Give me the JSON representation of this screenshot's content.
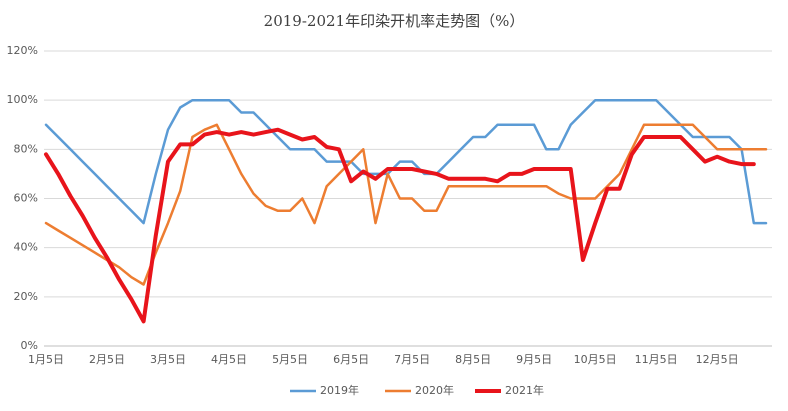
{
  "chart_data": {
    "type": "line",
    "title": "2019-2021年印染开机率走势图（%）",
    "categories": [
      "1月5日",
      null,
      null,
      null,
      null,
      "2月5日",
      null,
      null,
      null,
      null,
      "3月5日",
      null,
      null,
      null,
      null,
      "4月5日",
      null,
      null,
      null,
      null,
      "5月5日",
      null,
      null,
      null,
      null,
      "6月5日",
      null,
      null,
      null,
      null,
      "7月5日",
      null,
      null,
      null,
      null,
      "8月5日",
      null,
      null,
      null,
      null,
      "9月5日",
      null,
      null,
      null,
      null,
      "10月5日",
      null,
      null,
      null,
      null,
      "11月5日",
      null,
      null,
      null,
      null,
      "12月5日",
      null,
      null,
      null,
      null
    ],
    "series": [
      {
        "name": "2019年",
        "color": "#5b9bd5",
        "width": 2.5,
        "values": [
          90,
          85,
          80,
          75,
          70,
          65,
          60,
          55,
          50,
          70,
          88,
          97,
          100,
          100,
          100,
          100,
          95,
          95,
          90,
          85,
          80,
          80,
          80,
          75,
          75,
          75,
          70,
          70,
          70,
          75,
          75,
          70,
          70,
          75,
          80,
          85,
          85,
          90,
          90,
          90,
          90,
          80,
          80,
          90,
          95,
          100,
          100,
          100,
          100,
          100,
          100,
          95,
          90,
          85,
          85,
          85,
          85,
          80,
          50,
          50
        ]
      },
      {
        "name": "2020年",
        "color": "#ed7d31",
        "width": 2.5,
        "values": [
          50,
          47,
          44,
          41,
          38,
          35,
          32,
          28,
          25,
          38,
          50,
          63,
          85,
          88,
          90,
          80,
          70,
          62,
          57,
          55,
          55,
          60,
          50,
          65,
          70,
          75,
          80,
          50,
          70,
          60,
          60,
          55,
          55,
          65,
          65,
          65,
          65,
          65,
          65,
          65,
          65,
          65,
          62,
          60,
          60,
          60,
          65,
          70,
          80,
          90,
          90,
          90,
          90,
          90,
          85,
          80,
          80,
          80,
          80,
          80
        ]
      },
      {
        "name": "2021年",
        "color": "#e8141b",
        "width": 4,
        "values": [
          78,
          70,
          61,
          53,
          44,
          36,
          27,
          19,
          10,
          45,
          75,
          82,
          82,
          86,
          87,
          86,
          87,
          86,
          87,
          88,
          86,
          84,
          85,
          81,
          80,
          67,
          71,
          68,
          72,
          72,
          72,
          71,
          70,
          68,
          68,
          68,
          68,
          67,
          70,
          70,
          72,
          72,
          72,
          72,
          35,
          50,
          64,
          64,
          78,
          85,
          85,
          85,
          85,
          80,
          75,
          77,
          75,
          74,
          74,
          null
        ]
      }
    ],
    "ylim": [
      0,
      120
    ],
    "yticks": [
      {
        "value": 0,
        "label": "0%"
      },
      {
        "value": 20,
        "label": "20%"
      },
      {
        "value": 40,
        "label": "40%"
      },
      {
        "value": 60,
        "label": "60%"
      },
      {
        "value": 80,
        "label": "80%"
      },
      {
        "value": 100,
        "label": "100%"
      },
      {
        "value": 120,
        "label": "120%"
      }
    ],
    "grid": true
  }
}
